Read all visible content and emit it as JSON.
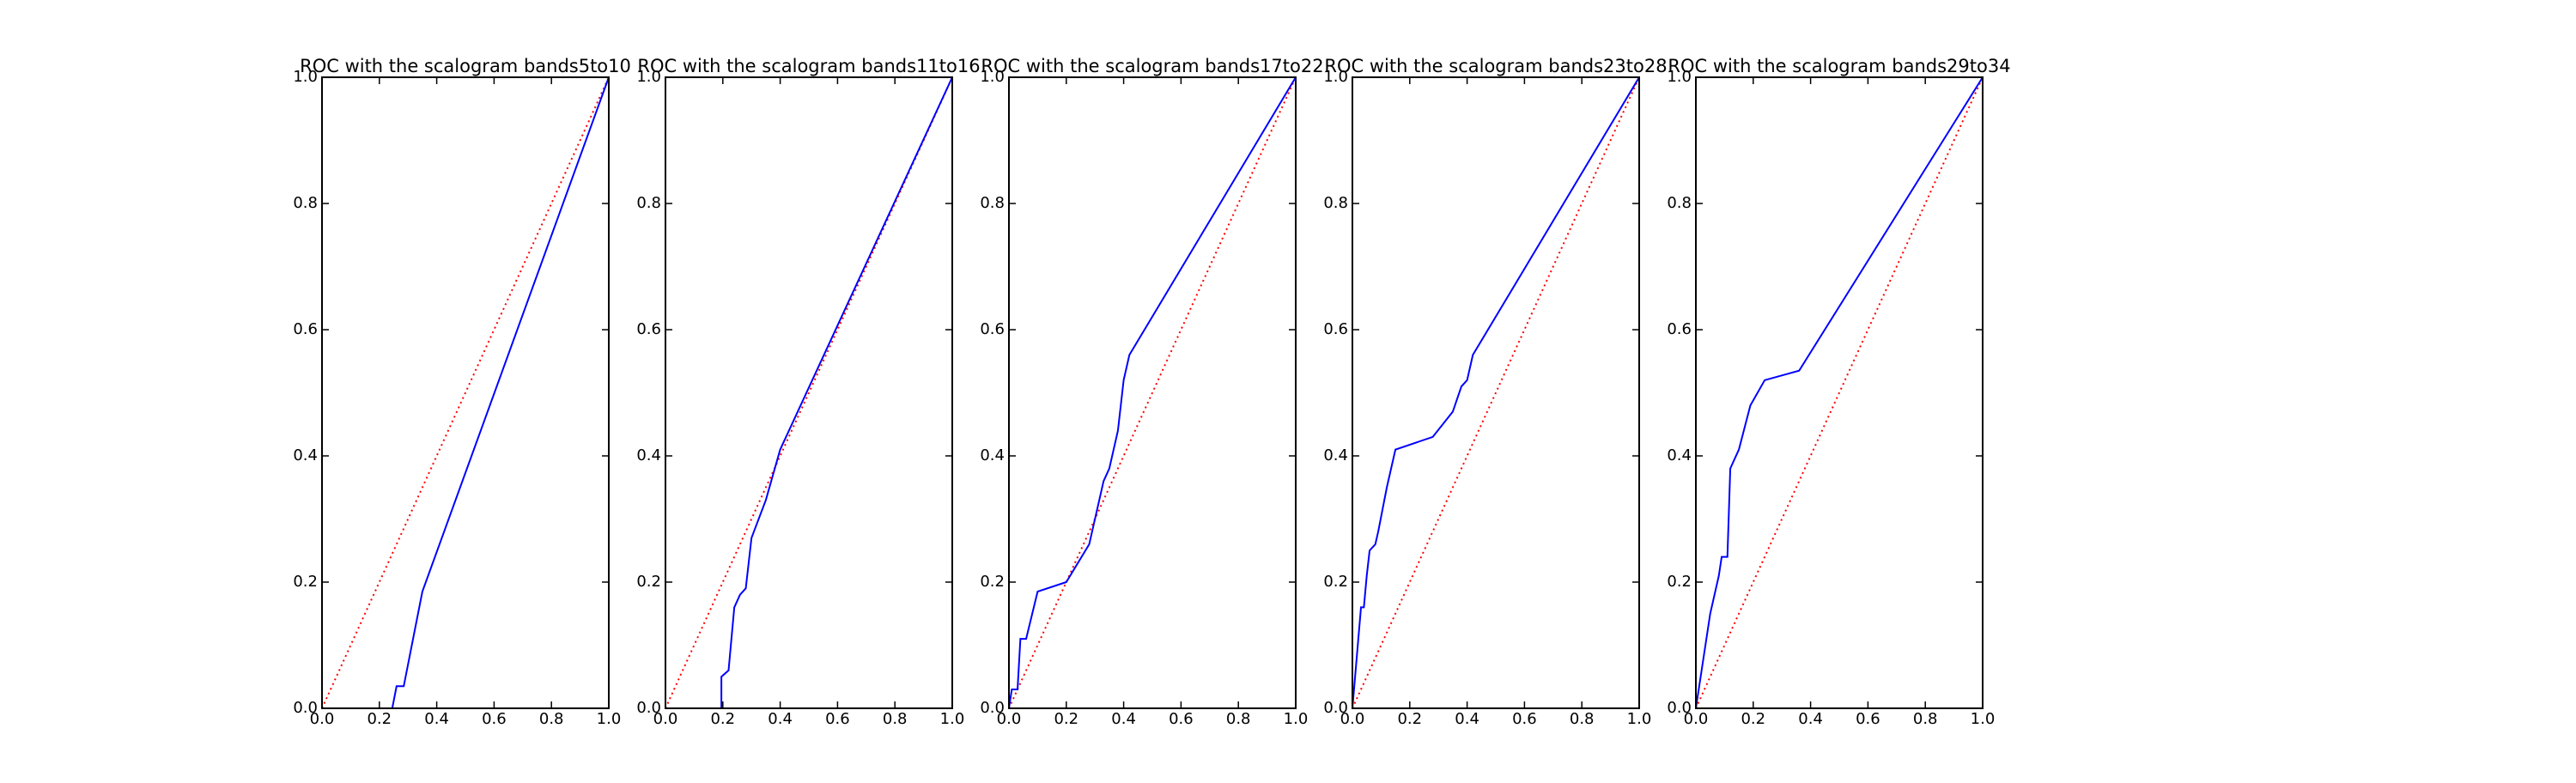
{
  "chart_data": [
    {
      "type": "line",
      "title": "ROC with the scalogram bands5to10",
      "xlim": [
        0,
        1
      ],
      "ylim": [
        0,
        1
      ],
      "xticks": [
        {
          "value": 0,
          "label": "0.0"
        },
        {
          "value": 0.2,
          "label": "0.2"
        },
        {
          "value": 0.4,
          "label": "0.4"
        },
        {
          "value": 0.6,
          "label": "0.6"
        },
        {
          "value": 0.8,
          "label": "0.8"
        },
        {
          "value": 1,
          "label": "1.0"
        }
      ],
      "yticks": [
        {
          "value": 0,
          "label": "0.0"
        },
        {
          "value": 0.2,
          "label": "0.2"
        },
        {
          "value": 0.4,
          "label": "0.4"
        },
        {
          "value": 0.6,
          "label": "0.6"
        },
        {
          "value": 0.8,
          "label": "0.8"
        },
        {
          "value": 1,
          "label": "1.0"
        }
      ],
      "series": [
        {
          "color": "#ff0000",
          "linestyle": "dotted",
          "x": [
            0,
            1
          ],
          "values": [
            0,
            1
          ]
        },
        {
          "color": "#0000ff",
          "linestyle": "solid",
          "x": [
            0.245,
            0.26,
            0.285,
            0.35,
            1
          ],
          "values": [
            0,
            0.035,
            0.035,
            0.185,
            1
          ]
        }
      ]
    },
    {
      "type": "line",
      "title": "ROC with the scalogram bands11to16",
      "xlim": [
        0,
        1
      ],
      "ylim": [
        0,
        1
      ],
      "xticks": [
        {
          "value": 0,
          "label": "0.0"
        },
        {
          "value": 0.2,
          "label": "0.2"
        },
        {
          "value": 0.4,
          "label": "0.4"
        },
        {
          "value": 0.6,
          "label": "0.6"
        },
        {
          "value": 0.8,
          "label": "0.8"
        },
        {
          "value": 1,
          "label": "1.0"
        }
      ],
      "yticks": [
        {
          "value": 0,
          "label": "0.0"
        },
        {
          "value": 0.2,
          "label": "0.2"
        },
        {
          "value": 0.4,
          "label": "0.4"
        },
        {
          "value": 0.6,
          "label": "0.6"
        },
        {
          "value": 0.8,
          "label": "0.8"
        },
        {
          "value": 1,
          "label": "1.0"
        }
      ],
      "series": [
        {
          "color": "#ff0000",
          "linestyle": "dotted",
          "x": [
            0,
            1
          ],
          "values": [
            0,
            1
          ]
        },
        {
          "color": "#0000ff",
          "linestyle": "solid",
          "x": [
            0.195,
            0.195,
            0.22,
            0.24,
            0.26,
            0.28,
            0.3,
            0.35,
            0.4,
            1
          ],
          "values": [
            0,
            0.05,
            0.06,
            0.16,
            0.18,
            0.19,
            0.27,
            0.33,
            0.41,
            1
          ]
        }
      ]
    },
    {
      "type": "line",
      "title": "ROC with the scalogram bands17to22",
      "xlim": [
        0,
        1
      ],
      "ylim": [
        0,
        1
      ],
      "xticks": [
        {
          "value": 0,
          "label": "0.0"
        },
        {
          "value": 0.2,
          "label": "0.2"
        },
        {
          "value": 0.4,
          "label": "0.4"
        },
        {
          "value": 0.6,
          "label": "0.6"
        },
        {
          "value": 0.8,
          "label": "0.8"
        },
        {
          "value": 1,
          "label": "1.0"
        }
      ],
      "yticks": [
        {
          "value": 0,
          "label": "0.0"
        },
        {
          "value": 0.2,
          "label": "0.2"
        },
        {
          "value": 0.4,
          "label": "0.4"
        },
        {
          "value": 0.6,
          "label": "0.6"
        },
        {
          "value": 0.8,
          "label": "0.8"
        },
        {
          "value": 1,
          "label": "1.0"
        }
      ],
      "series": [
        {
          "color": "#ff0000",
          "linestyle": "dotted",
          "x": [
            0,
            1
          ],
          "values": [
            0,
            1
          ]
        },
        {
          "color": "#0000ff",
          "linestyle": "solid",
          "x": [
            0,
            0.01,
            0.03,
            0.04,
            0.06,
            0.1,
            0.2,
            0.28,
            0.33,
            0.35,
            0.38,
            0.4,
            0.42,
            1
          ],
          "values": [
            0,
            0.03,
            0.03,
            0.11,
            0.11,
            0.185,
            0.2,
            0.26,
            0.36,
            0.38,
            0.44,
            0.52,
            0.56,
            1
          ]
        }
      ]
    },
    {
      "type": "line",
      "title": "ROC with the scalogram bands23to28",
      "xlim": [
        0,
        1
      ],
      "ylim": [
        0,
        1
      ],
      "xticks": [
        {
          "value": 0,
          "label": "0.0"
        },
        {
          "value": 0.2,
          "label": "0.2"
        },
        {
          "value": 0.4,
          "label": "0.4"
        },
        {
          "value": 0.6,
          "label": "0.6"
        },
        {
          "value": 0.8,
          "label": "0.8"
        },
        {
          "value": 1,
          "label": "1.0"
        }
      ],
      "yticks": [
        {
          "value": 0,
          "label": "0.0"
        },
        {
          "value": 0.2,
          "label": "0.2"
        },
        {
          "value": 0.4,
          "label": "0.4"
        },
        {
          "value": 0.6,
          "label": "0.6"
        },
        {
          "value": 0.8,
          "label": "0.8"
        },
        {
          "value": 1,
          "label": "1.0"
        }
      ],
      "series": [
        {
          "color": "#ff0000",
          "linestyle": "dotted",
          "x": [
            0,
            1
          ],
          "values": [
            0,
            1
          ]
        },
        {
          "color": "#0000ff",
          "linestyle": "solid",
          "x": [
            0,
            0.03,
            0.04,
            0.05,
            0.06,
            0.08,
            0.09,
            0.12,
            0.15,
            0.28,
            0.35,
            0.38,
            0.4,
            0.42,
            1
          ],
          "values": [
            0,
            0.16,
            0.16,
            0.21,
            0.25,
            0.26,
            0.28,
            0.35,
            0.41,
            0.43,
            0.47,
            0.51,
            0.52,
            0.56,
            1
          ]
        }
      ]
    },
    {
      "type": "line",
      "title": "ROC with the scalogram bands29to34",
      "xlim": [
        0,
        1
      ],
      "ylim": [
        0,
        1
      ],
      "xticks": [
        {
          "value": 0,
          "label": "0.0"
        },
        {
          "value": 0.2,
          "label": "0.2"
        },
        {
          "value": 0.4,
          "label": "0.4"
        },
        {
          "value": 0.6,
          "label": "0.6"
        },
        {
          "value": 0.8,
          "label": "0.8"
        },
        {
          "value": 1,
          "label": "1.0"
        }
      ],
      "yticks": [
        {
          "value": 0,
          "label": "0.0"
        },
        {
          "value": 0.2,
          "label": "0.2"
        },
        {
          "value": 0.4,
          "label": "0.4"
        },
        {
          "value": 0.6,
          "label": "0.6"
        },
        {
          "value": 0.8,
          "label": "0.8"
        },
        {
          "value": 1,
          "label": "1.0"
        }
      ],
      "series": [
        {
          "color": "#ff0000",
          "linestyle": "dotted",
          "x": [
            0,
            1
          ],
          "values": [
            0,
            1
          ]
        },
        {
          "color": "#0000ff",
          "linestyle": "solid",
          "x": [
            0,
            0.05,
            0.08,
            0.09,
            0.11,
            0.12,
            0.13,
            0.15,
            0.19,
            0.24,
            0.32,
            0.36,
            1
          ],
          "values": [
            0,
            0.15,
            0.21,
            0.24,
            0.24,
            0.38,
            0.39,
            0.41,
            0.48,
            0.52,
            0.53,
            0.535,
            1
          ]
        }
      ]
    }
  ]
}
